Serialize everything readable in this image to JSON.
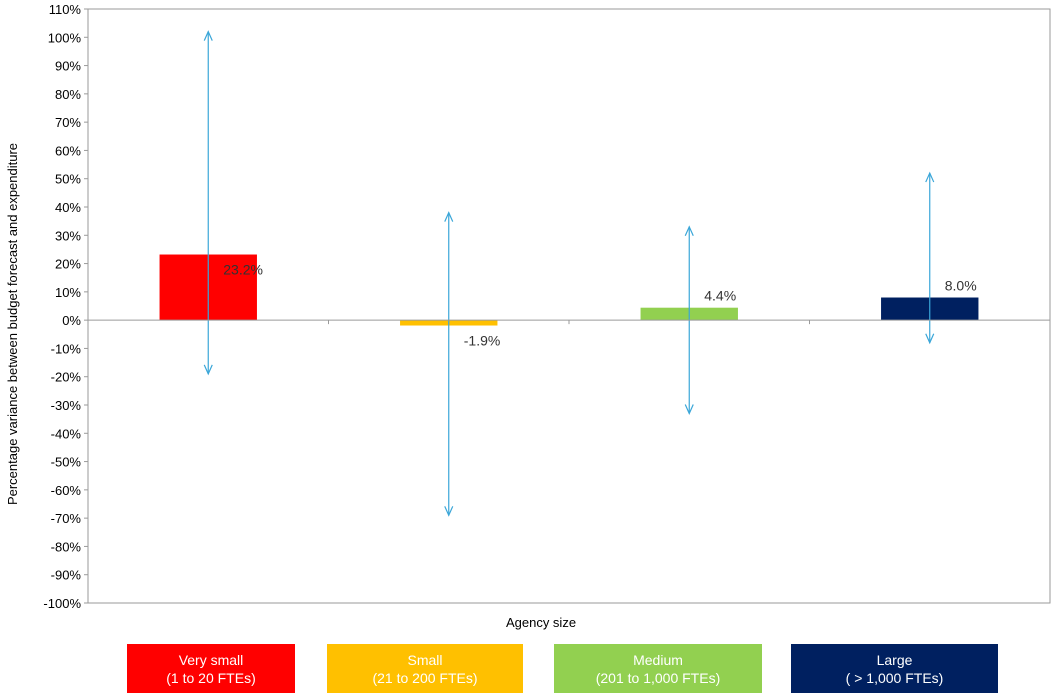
{
  "chart_data": {
    "type": "bar",
    "xlabel": "Agency size",
    "ylabel": "Percentage variance between budget forecast and expenditure",
    "ylim": [
      -100,
      110
    ],
    "ytick_step": 10,
    "ytick_labels": [
      "110%",
      "100%",
      "90%",
      "80%",
      "70%",
      "60%",
      "50%",
      "40%",
      "30%",
      "20%",
      "10%",
      "0%",
      "-10%",
      "-20%",
      "-30%",
      "-40%",
      "-50%",
      "-60%",
      "-70%",
      "-80%",
      "-90%",
      "-100%"
    ],
    "categories": [
      "Very small",
      "Small",
      "Medium",
      "Large"
    ],
    "values": [
      23.2,
      -1.9,
      4.4,
      8.0
    ],
    "data_labels": [
      "23.2%",
      "-1.9%",
      "4.4%",
      "8.0%"
    ],
    "ranges": [
      {
        "low": -19,
        "high": 102
      },
      {
        "low": -69,
        "high": 38
      },
      {
        "low": -33,
        "high": 33
      },
      {
        "low": -8,
        "high": 52
      }
    ],
    "colors": [
      "#ff0000",
      "#ffc000",
      "#92d050",
      "#002060"
    ],
    "range_color": "#3aa6d8",
    "grid": false
  },
  "legend": [
    {
      "line1": "Very small",
      "line2": "(1 to 20 FTEs)",
      "color": "#ff0000"
    },
    {
      "line1": "Small",
      "line2": "(21 to 200 FTEs)",
      "color": "#ffc000"
    },
    {
      "line1": "Medium",
      "line2": "(201 to 1,000 FTEs)",
      "color": "#92d050"
    },
    {
      "line1": "Large",
      "line2": "( > 1,000 FTEs)",
      "color": "#002060"
    }
  ]
}
